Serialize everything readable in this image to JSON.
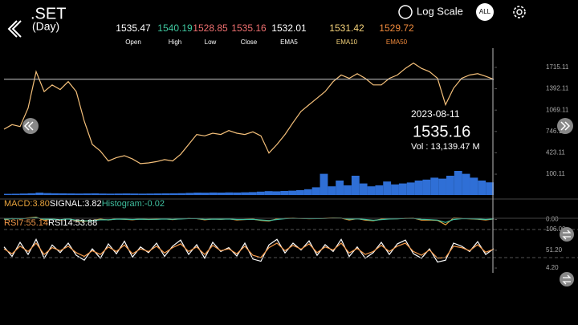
{
  "header": {
    "title": ".SET",
    "subtitle": "(Day)",
    "log_scale": "Log Scale",
    "range": "ALL"
  },
  "quote": [
    {
      "value": 1535.47,
      "label": "Open",
      "color": "#ffffff"
    },
    {
      "value": 1540.19,
      "label": "High",
      "color": "#3fc8a0"
    },
    {
      "value": 1528.85,
      "label": "Low",
      "color": "#f07070"
    },
    {
      "value": 1535.16,
      "label": "Close",
      "color": "#f07070"
    },
    {
      "value": 1532.01,
      "label": "EMA5",
      "color": "#ffffff"
    },
    {
      "value": 1531.42,
      "label": "EMA10",
      "color": "#f5d27a"
    },
    {
      "value": 1529.72,
      "label": "EMA50",
      "color": "#f08a3c"
    }
  ],
  "crosshair": {
    "date": "2023-08-11",
    "value": 1535.16,
    "volume": "Vol   : 13,139.47 M"
  },
  "chart_data": [
    {
      "type": "line",
      "ylim": [
        -215,
        1824
      ],
      "yticks": [
        1715.11,
        1392.11,
        1069.11,
        746.11,
        423.11,
        100.11
      ],
      "y2lim": [
        0,
        35000
      ],
      "series": [
        {
          "color": "#f5c07a",
          "values": [
            780,
            850,
            820,
            1100,
            1650,
            1350,
            1450,
            1380,
            1500,
            1350,
            900,
            550,
            450,
            300,
            350,
            380,
            330,
            260,
            270,
            290,
            320,
            300,
            400,
            550,
            700,
            680,
            720,
            700,
            760,
            720,
            700,
            740,
            680,
            420,
            550,
            700,
            880,
            1050,
            1150,
            1250,
            1350,
            1500,
            1600,
            1550,
            1620,
            1550,
            1450,
            1450,
            1550,
            1600,
            1700,
            1780,
            1700,
            1650,
            1550,
            1150,
            1400,
            1550,
            1600,
            1620,
            1580,
            1535.16
          ]
        },
        {
          "type": "bar",
          "axis": "y2",
          "color": "#2f6fd6",
          "values": [
            1200,
            1300,
            1500,
            1800,
            2500,
            2000,
            1800,
            1700,
            1600,
            1500,
            1600,
            1700,
            1500,
            1400,
            1500,
            1600,
            1500,
            1400,
            1500,
            1600,
            1700,
            1800,
            1900,
            2200,
            2500,
            2400,
            2600,
            2500,
            2700,
            2600,
            2800,
            3000,
            3500,
            4000,
            3800,
            4200,
            4500,
            5000,
            6000,
            8000,
            22000,
            9000,
            15000,
            10000,
            20000,
            12000,
            9000,
            10000,
            14000,
            11000,
            12000,
            13000,
            15000,
            16000,
            18000,
            17000,
            20000,
            25000,
            22000,
            18000,
            15000,
            13139.47
          ]
        }
      ]
    },
    {
      "type": "line",
      "ylim": [
        -60,
        60
      ],
      "yticks": [
        {
          "value": 0,
          "label": "0.00"
        }
      ],
      "title": "MACD:3.80",
      "signal": "SIGNAL:3.82",
      "histogram": "Histogram:-0.02",
      "series": [
        {
          "color": "#e8a33c",
          "values": [
            2,
            8,
            4,
            10,
            15,
            -5,
            3,
            -4,
            6,
            -8,
            -12,
            -6,
            2,
            -3,
            4,
            1,
            -2,
            3,
            0,
            2,
            4,
            -1,
            5,
            8,
            6,
            -2,
            3,
            1,
            4,
            -3,
            0,
            2,
            -6,
            -10,
            4,
            8,
            9,
            7,
            5,
            6,
            8,
            10,
            9,
            -3,
            6,
            -4,
            -8,
            2,
            6,
            5,
            8,
            9,
            -4,
            -3,
            -6,
            -35,
            10,
            8,
            4,
            2,
            -3,
            3.8
          ]
        },
        {
          "color": "#3fbf9f",
          "values": [
            1,
            5,
            5,
            8,
            12,
            2,
            2,
            -1,
            3,
            -4,
            -9,
            -8,
            -2,
            -2,
            2,
            2,
            0,
            2,
            1,
            1,
            3,
            1,
            3,
            6,
            6,
            1,
            2,
            2,
            3,
            0,
            0,
            1,
            -3,
            -7,
            0,
            5,
            8,
            7,
            6,
            6,
            7,
            9,
            9,
            2,
            4,
            0,
            -5,
            -1,
            3,
            4,
            7,
            8,
            1,
            -1,
            -4,
            -20,
            0,
            5,
            5,
            3,
            0,
            3.82
          ]
        }
      ]
    },
    {
      "type": "line",
      "ylim": [
        0,
        106
      ],
      "yticks": [
        {
          "value": 106,
          "label": "106.00"
        },
        {
          "value": 51.2,
          "label": "51.20"
        },
        {
          "value": 4.2,
          "label": "4.20"
        }
      ],
      "title": "RSI7:55.14",
      "signal": "RSI14:53.88",
      "series": [
        {
          "color": "#ffffff",
          "values": [
            60,
            35,
            72,
            40,
            80,
            30,
            65,
            45,
            70,
            38,
            25,
            55,
            30,
            68,
            42,
            75,
            33,
            60,
            45,
            70,
            35,
            62,
            78,
            40,
            66,
            30,
            72,
            48,
            58,
            36,
            70,
            28,
            22,
            65,
            80,
            44,
            70,
            52,
            76,
            38,
            66,
            48,
            80,
            35,
            60,
            30,
            45,
            72,
            40,
            68,
            78,
            42,
            30,
            55,
            20,
            25,
            70,
            62,
            48,
            74,
            40,
            55.14
          ]
        },
        {
          "color": "#f59a4a",
          "values": [
            55,
            42,
            62,
            48,
            70,
            40,
            58,
            50,
            62,
            45,
            35,
            50,
            40,
            60,
            48,
            65,
            42,
            55,
            48,
            62,
            44,
            58,
            68,
            48,
            60,
            40,
            64,
            50,
            55,
            42,
            62,
            38,
            32,
            58,
            70,
            50,
            64,
            54,
            68,
            45,
            60,
            52,
            70,
            44,
            56,
            40,
            48,
            64,
            48,
            62,
            70,
            48,
            38,
            52,
            30,
            32,
            62,
            58,
            50,
            66,
            46,
            53.88
          ]
        }
      ]
    }
  ]
}
